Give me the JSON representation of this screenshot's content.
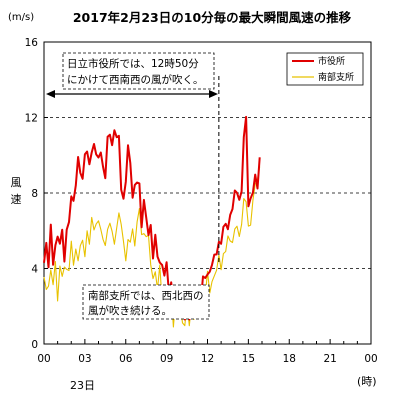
{
  "chart_data": {
    "type": "line",
    "title": "2017年2月23日の10分毎の最大瞬間風速の推移",
    "y_unit": "(m/s)",
    "ylabel": "風速",
    "x_unit": "(時)",
    "date_label": "23日",
    "ylim": [
      0,
      16
    ],
    "yticks": [
      "0",
      "4",
      "8",
      "12",
      "16"
    ],
    "xticks": [
      "00",
      "03",
      "06",
      "09",
      "12",
      "15",
      "18",
      "21",
      "00"
    ],
    "grid_dashed_y": [
      4,
      8,
      12
    ],
    "vline_label_time": "12:50",
    "legend_position": "top-right",
    "annotations": {
      "top_note": [
        "日立市役所では、12時50分",
        "にかけて西南西の風が吹く。"
      ],
      "bottom_note": [
        "南部支所では、西北西の",
        "風が吹き続ける。"
      ]
    },
    "series": [
      {
        "name": "市役所",
        "color": "#e00000",
        "control_points": [
          [
            0,
            4.3
          ],
          [
            10,
            5.3
          ],
          [
            20,
            4.6
          ],
          [
            30,
            5.5
          ],
          [
            40,
            4.7
          ],
          [
            50,
            5.0
          ],
          [
            60,
            6.0
          ],
          [
            70,
            5.2
          ],
          [
            80,
            5.6
          ],
          [
            90,
            5.0
          ],
          [
            100,
            5.7
          ],
          [
            110,
            6.8
          ],
          [
            120,
            7.3
          ],
          [
            130,
            7.8
          ],
          [
            140,
            8.7
          ],
          [
            150,
            9.6
          ],
          [
            160,
            9.2
          ],
          [
            170,
            8.4
          ],
          [
            180,
            10.6
          ],
          [
            190,
            10.0
          ],
          [
            200,
            9.4
          ],
          [
            210,
            10.1
          ],
          [
            220,
            10.7
          ],
          [
            230,
            10.3
          ],
          [
            240,
            9.5
          ],
          [
            250,
            10.2
          ],
          [
            260,
            9.4
          ],
          [
            270,
            9.1
          ],
          [
            280,
            10.7
          ],
          [
            290,
            11.0
          ],
          [
            300,
            10.6
          ],
          [
            310,
            11.5
          ],
          [
            320,
            11.0
          ],
          [
            330,
            10.6
          ],
          [
            340,
            8.5
          ],
          [
            350,
            7.6
          ],
          [
            360,
            8.9
          ],
          [
            370,
            10.1
          ],
          [
            380,
            9.6
          ],
          [
            390,
            8.1
          ],
          [
            400,
            8.2
          ],
          [
            410,
            8.8
          ],
          [
            420,
            7.9
          ],
          [
            430,
            6.8
          ],
          [
            440,
            7.5
          ],
          [
            450,
            6.6
          ],
          [
            460,
            5.8
          ],
          [
            470,
            6.0
          ],
          [
            480,
            5.3
          ],
          [
            490,
            5.1
          ],
          [
            500,
            4.9
          ],
          [
            510,
            4.1
          ],
          [
            520,
            4.4
          ],
          [
            530,
            3.9
          ],
          [
            540,
            3.6
          ],
          [
            550,
            3.3
          ],
          [
            560,
            2.9
          ],
          [
            570,
            2.5
          ],
          [
            580,
            2.2
          ],
          [
            590,
            2.0
          ],
          [
            600,
            2.0
          ],
          [
            610,
            1.9
          ],
          [
            620,
            1.6
          ],
          [
            630,
            1.5
          ],
          [
            640,
            1.6
          ],
          [
            650,
            1.7
          ],
          [
            660,
            1.9
          ],
          [
            670,
            2.2
          ],
          [
            680,
            2.6
          ],
          [
            690,
            2.8
          ],
          [
            700,
            3.2
          ],
          [
            710,
            3.5
          ],
          [
            720,
            3.6
          ],
          [
            730,
            4.0
          ],
          [
            740,
            4.4
          ],
          [
            750,
            4.3
          ],
          [
            760,
            4.9
          ],
          [
            770,
            5.4
          ],
          [
            780,
            5.6
          ],
          [
            790,
            5.9
          ],
          [
            800,
            6.3
          ],
          [
            810,
            6.2
          ],
          [
            820,
            7.0
          ],
          [
            830,
            7.1
          ],
          [
            840,
            7.8
          ],
          [
            850,
            8.3
          ],
          [
            860,
            7.6
          ],
          [
            870,
            8.3
          ],
          [
            875,
            9.4
          ],
          [
            880,
            10.5
          ],
          [
            885,
            11.8
          ],
          [
            890,
            12.2
          ],
          [
            895,
            9.8
          ],
          [
            900,
            7.5
          ],
          [
            905,
            6.4
          ],
          [
            910,
            7.6
          ],
          [
            915,
            6.8
          ],
          [
            920,
            8.1
          ],
          [
            925,
            8.7
          ],
          [
            930,
            8.5
          ],
          [
            935,
            8.7
          ],
          [
            940,
            8.9
          ],
          [
            945,
            9.3
          ],
          [
            950,
            9.6
          ]
        ],
        "x_step_min": 10,
        "value_min": 1.3,
        "value_max": 12.4,
        "noise_amplitude": [
          0.45,
          0.4
        ]
      },
      {
        "name": "南部支所",
        "color": "#e8c200",
        "control_points": [
          [
            0,
            2.6
          ],
          [
            10,
            3.4
          ],
          [
            20,
            3.2
          ],
          [
            30,
            3.7
          ],
          [
            40,
            3.4
          ],
          [
            50,
            3.6
          ],
          [
            60,
            3.3
          ],
          [
            70,
            3.6
          ],
          [
            80,
            3.7
          ],
          [
            90,
            3.9
          ],
          [
            100,
            3.9
          ],
          [
            110,
            4.6
          ],
          [
            120,
            4.6
          ],
          [
            130,
            4.6
          ],
          [
            140,
            4.7
          ],
          [
            150,
            4.9
          ],
          [
            160,
            5.1
          ],
          [
            170,
            5.0
          ],
          [
            180,
            5.1
          ],
          [
            190,
            5.8
          ],
          [
            200,
            5.7
          ],
          [
            210,
            6.1
          ],
          [
            220,
            6.2
          ],
          [
            230,
            6.6
          ],
          [
            240,
            6.5
          ],
          [
            250,
            6.0
          ],
          [
            260,
            5.2
          ],
          [
            270,
            5.7
          ],
          [
            280,
            6.0
          ],
          [
            290,
            6.4
          ],
          [
            300,
            5.6
          ],
          [
            310,
            5.6
          ],
          [
            320,
            6.3
          ],
          [
            330,
            6.8
          ],
          [
            340,
            6.2
          ],
          [
            350,
            5.3
          ],
          [
            360,
            5.0
          ],
          [
            370,
            5.1
          ],
          [
            380,
            5.5
          ],
          [
            390,
            5.8
          ],
          [
            400,
            5.6
          ],
          [
            410,
            6.6
          ],
          [
            420,
            6.6
          ],
          [
            430,
            6.2
          ],
          [
            440,
            5.5
          ],
          [
            450,
            6.4
          ],
          [
            460,
            5.1
          ],
          [
            470,
            4.2
          ],
          [
            480,
            3.8
          ],
          [
            490,
            3.6
          ],
          [
            500,
            3.4
          ],
          [
            510,
            3.2
          ],
          [
            520,
            3.0
          ],
          [
            530,
            2.8
          ],
          [
            540,
            2.6
          ],
          [
            550,
            2.4
          ],
          [
            560,
            2.2
          ],
          [
            570,
            1.9
          ],
          [
            580,
            1.7
          ],
          [
            590,
            1.7
          ],
          [
            600,
            1.6
          ],
          [
            610,
            1.4
          ],
          [
            620,
            1.4
          ],
          [
            630,
            1.4
          ],
          [
            640,
            1.5
          ],
          [
            650,
            1.7
          ],
          [
            660,
            2.0
          ],
          [
            670,
            2.3
          ],
          [
            680,
            2.5
          ],
          [
            690,
            2.6
          ],
          [
            700,
            2.7
          ],
          [
            710,
            2.9
          ],
          [
            720,
            3.1
          ],
          [
            730,
            3.1
          ],
          [
            740,
            3.4
          ],
          [
            750,
            3.6
          ],
          [
            760,
            3.8
          ],
          [
            770,
            4.4
          ],
          [
            780,
            4.5
          ],
          [
            790,
            4.6
          ],
          [
            800,
            4.9
          ],
          [
            810,
            5.4
          ],
          [
            820,
            5.8
          ],
          [
            830,
            5.5
          ],
          [
            840,
            5.9
          ],
          [
            850,
            6.1
          ],
          [
            860,
            5.7
          ],
          [
            870,
            6.8
          ],
          [
            880,
            7.3
          ],
          [
            890,
            7.6
          ],
          [
            895,
            8.9
          ],
          [
            900,
            6.0
          ],
          [
            905,
            5.6
          ],
          [
            910,
            6.8
          ],
          [
            915,
            7.2
          ],
          [
            920,
            7.5
          ],
          [
            925,
            7.0
          ],
          [
            930,
            8.1
          ],
          [
            935,
            8.4
          ],
          [
            940,
            9.0
          ],
          [
            945,
            9.0
          ],
          [
            950,
            9.2
          ]
        ],
        "x_step_min": 10,
        "value_min": 0.9,
        "value_max": 9.4,
        "noise_amplitude": [
          0.55,
          0.5
        ]
      }
    ]
  }
}
